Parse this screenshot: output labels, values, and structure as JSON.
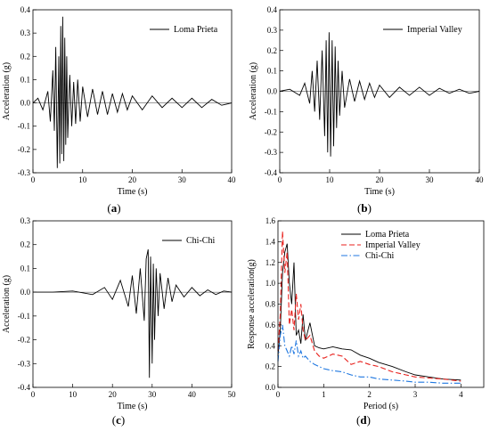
{
  "chart_data": [
    {
      "panel": "(a)",
      "panel_letter": "a",
      "type": "line",
      "title": "",
      "xlabel": "Time (s)",
      "ylabel": "Acceleration (g)",
      "xlim": [
        0,
        40
      ],
      "ylim": [
        -0.3,
        0.4
      ],
      "xticks": [
        0,
        10,
        20,
        30,
        40
      ],
      "yticks": [
        -0.3,
        -0.2,
        -0.1,
        0.0,
        0.1,
        0.2,
        0.3,
        0.4
      ],
      "grid": false,
      "legend_position": "top-right",
      "series": [
        {
          "name": "Loma Prieta",
          "color": "#000000",
          "style": "solid",
          "x": [
            0,
            1,
            2,
            3,
            3.5,
            4,
            4.3,
            4.6,
            4.9,
            5.2,
            5.4,
            5.6,
            5.8,
            6.0,
            6.2,
            6.4,
            6.6,
            6.8,
            7.0,
            7.4,
            7.8,
            8.2,
            8.6,
            9,
            9.5,
            10,
            11,
            12,
            13,
            14,
            15,
            16,
            17,
            18,
            19,
            20,
            22,
            24,
            26,
            28,
            30,
            32,
            34,
            36,
            38,
            40
          ],
          "y": [
            0,
            0.02,
            -0.03,
            0.05,
            -0.08,
            0.14,
            -0.12,
            0.24,
            -0.28,
            0.2,
            -0.26,
            0.33,
            -0.22,
            0.37,
            -0.25,
            0.28,
            -0.18,
            0.2,
            -0.15,
            0.12,
            -0.1,
            0.09,
            -0.09,
            0.1,
            -0.08,
            0.07,
            -0.06,
            0.06,
            -0.05,
            0.05,
            -0.05,
            0.04,
            -0.04,
            0.04,
            -0.03,
            0.03,
            -0.03,
            0.03,
            -0.02,
            0.02,
            -0.02,
            0.02,
            -0.02,
            0.015,
            -0.01,
            0.0
          ]
        }
      ]
    },
    {
      "panel": "(b)",
      "panel_letter": "b",
      "type": "line",
      "title": "",
      "xlabel": "Time (s)",
      "ylabel": "Acceleration (g)",
      "xlim": [
        0,
        40
      ],
      "ylim": [
        -0.4,
        0.4
      ],
      "xticks": [
        0,
        10,
        20,
        30,
        40
      ],
      "yticks": [
        -0.4,
        -0.3,
        -0.2,
        -0.1,
        0.0,
        0.1,
        0.2,
        0.3,
        0.4
      ],
      "grid": false,
      "legend_position": "top-right",
      "series": [
        {
          "name": "Imperial Valley",
          "color": "#000000",
          "style": "solid",
          "x": [
            0,
            2,
            4,
            5,
            6,
            6.5,
            7,
            7.5,
            8,
            8.5,
            9,
            9.3,
            9.6,
            9.9,
            10.2,
            10.5,
            10.8,
            11.1,
            11.4,
            11.7,
            12,
            12.5,
            13,
            14,
            15,
            16,
            17,
            18,
            19,
            20,
            22,
            24,
            26,
            28,
            30,
            32,
            34,
            36,
            38,
            40
          ],
          "y": [
            0,
            0.01,
            -0.02,
            0.04,
            -0.06,
            0.1,
            -0.1,
            0.15,
            -0.14,
            0.2,
            -0.22,
            0.25,
            -0.3,
            0.29,
            -0.32,
            0.25,
            -0.27,
            0.22,
            -0.18,
            0.15,
            -0.12,
            0.1,
            -0.08,
            0.06,
            -0.05,
            0.05,
            -0.04,
            0.04,
            -0.03,
            0.03,
            -0.03,
            0.02,
            -0.02,
            0.02,
            -0.02,
            0.015,
            -0.01,
            0.01,
            -0.01,
            0.0
          ]
        }
      ]
    },
    {
      "panel": "(c)",
      "panel_letter": "c",
      "type": "line",
      "title": "",
      "xlabel": "Time (s)",
      "ylabel": "Acceleration (g)",
      "xlim": [
        0,
        50
      ],
      "ylim": [
        -0.4,
        0.3
      ],
      "xticks": [
        0,
        10,
        20,
        30,
        40,
        50
      ],
      "yticks": [
        -0.4,
        -0.3,
        -0.2,
        -0.1,
        0.0,
        0.1,
        0.2,
        0.3
      ],
      "grid": false,
      "legend_position": "top-right",
      "series": [
        {
          "name": "Chi-Chi",
          "color": "#000000",
          "style": "solid",
          "x": [
            0,
            5,
            10,
            15,
            18,
            20,
            22,
            24,
            25,
            26,
            27,
            28,
            28.5,
            29,
            29.3,
            29.6,
            30,
            30.3,
            30.6,
            31,
            31.5,
            32,
            33,
            34,
            35,
            36,
            38,
            40,
            42,
            44,
            46,
            48,
            50
          ],
          "y": [
            0,
            0.0,
            0.005,
            -0.01,
            0.02,
            -0.03,
            0.05,
            -0.06,
            0.07,
            -0.09,
            0.1,
            -0.12,
            0.14,
            0.18,
            -0.36,
            0.15,
            -0.3,
            0.12,
            -0.2,
            0.1,
            -0.1,
            0.08,
            -0.07,
            0.06,
            -0.04,
            0.03,
            -0.02,
            0.02,
            -0.015,
            0.01,
            -0.01,
            0.005,
            0.0
          ]
        }
      ]
    },
    {
      "panel": "(d)",
      "panel_letter": "d",
      "type": "line",
      "title": "",
      "xlabel": "Period (s)",
      "ylabel": "Response acceleration(g)",
      "xlim": [
        0,
        4.5
      ],
      "ylim": [
        0,
        1.6
      ],
      "xticks": [
        0,
        1,
        2,
        3,
        4
      ],
      "yticks": [
        0.0,
        0.2,
        0.4,
        0.6,
        0.8,
        1.0,
        1.2,
        1.4,
        1.6
      ],
      "grid": false,
      "legend_position": "top-right",
      "series": [
        {
          "name": "Loma Prieta",
          "color": "#000000",
          "style": "solid",
          "x": [
            0.0,
            0.05,
            0.1,
            0.15,
            0.2,
            0.25,
            0.3,
            0.35,
            0.4,
            0.45,
            0.5,
            0.55,
            0.6,
            0.7,
            0.8,
            0.9,
            1.0,
            1.2,
            1.4,
            1.6,
            1.8,
            2.0,
            2.2,
            2.5,
            2.8,
            3.0,
            3.3,
            3.6,
            4.0
          ],
          "y": [
            0.3,
            0.55,
            1.1,
            1.3,
            1.38,
            1.0,
            0.8,
            1.2,
            0.5,
            0.55,
            0.42,
            0.7,
            0.45,
            0.62,
            0.4,
            0.38,
            0.37,
            0.39,
            0.37,
            0.36,
            0.31,
            0.28,
            0.24,
            0.2,
            0.15,
            0.12,
            0.1,
            0.08,
            0.07
          ]
        },
        {
          "name": "Imperial Valley",
          "color": "#e8211d",
          "style": "dashed",
          "x": [
            0.0,
            0.05,
            0.1,
            0.15,
            0.2,
            0.25,
            0.3,
            0.35,
            0.4,
            0.45,
            0.5,
            0.55,
            0.6,
            0.7,
            0.8,
            0.9,
            1.0,
            1.2,
            1.4,
            1.6,
            1.8,
            2.0,
            2.2,
            2.5,
            2.8,
            3.0,
            3.3,
            3.6,
            4.0
          ],
          "y": [
            0.35,
            0.7,
            1.5,
            1.1,
            1.3,
            0.6,
            0.75,
            0.55,
            0.9,
            0.65,
            0.8,
            0.55,
            0.45,
            0.5,
            0.35,
            0.3,
            0.28,
            0.32,
            0.3,
            0.22,
            0.25,
            0.22,
            0.2,
            0.15,
            0.12,
            0.1,
            0.09,
            0.08,
            0.06
          ]
        },
        {
          "name": "Chi-Chi",
          "color": "#1f77e0",
          "style": "dashdot",
          "x": [
            0.0,
            0.05,
            0.1,
            0.15,
            0.2,
            0.25,
            0.3,
            0.35,
            0.4,
            0.45,
            0.5,
            0.55,
            0.6,
            0.7,
            0.8,
            0.9,
            1.0,
            1.2,
            1.4,
            1.6,
            1.8,
            2.0,
            2.2,
            2.5,
            2.8,
            3.0,
            3.3,
            3.6,
            4.0
          ],
          "y": [
            0.25,
            0.5,
            0.6,
            0.4,
            0.35,
            0.3,
            0.4,
            0.32,
            0.45,
            0.3,
            0.35,
            0.28,
            0.3,
            0.25,
            0.22,
            0.2,
            0.18,
            0.16,
            0.15,
            0.12,
            0.1,
            0.1,
            0.08,
            0.07,
            0.06,
            0.05,
            0.05,
            0.04,
            0.04
          ]
        }
      ]
    }
  ]
}
